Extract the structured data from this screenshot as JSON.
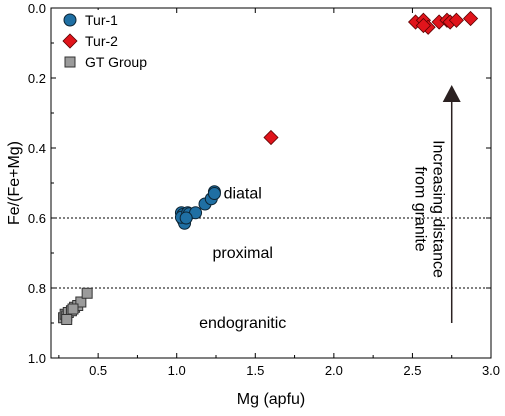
{
  "chart_data": {
    "type": "scatter",
    "title": "",
    "xlabel": "Mg (apfu)",
    "ylabel": "Fe/(Fe+Mg)",
    "xlim": [
      0.2,
      3.0
    ],
    "ylim": [
      0.0,
      1.0
    ],
    "y_inverted": true,
    "x_ticks": [
      "0.5",
      "1.0",
      "1.5",
      "2.0",
      "2.5",
      "3.0"
    ],
    "x_tick_values": [
      0.5,
      1.0,
      1.5,
      2.0,
      2.5,
      3.0
    ],
    "y_ticks": [
      "0.0",
      "0.2",
      "0.4",
      "0.6",
      "0.8",
      "1.0"
    ],
    "y_tick_values": [
      0.0,
      0.2,
      0.4,
      0.6,
      0.8,
      1.0
    ],
    "grid": false,
    "legend_position": "top-left",
    "series": [
      {
        "name": "Tur-1",
        "marker": "circle",
        "color": "#1f6fa3",
        "points": [
          [
            1.03,
            0.585
          ],
          [
            1.04,
            0.59
          ],
          [
            1.05,
            0.6
          ],
          [
            1.04,
            0.605
          ],
          [
            1.05,
            0.615
          ],
          [
            1.03,
            0.598
          ],
          [
            1.07,
            0.585
          ],
          [
            1.08,
            0.588
          ],
          [
            1.12,
            0.585
          ],
          [
            1.18,
            0.56
          ],
          [
            1.22,
            0.545
          ],
          [
            1.24,
            0.525
          ],
          [
            1.24,
            0.53
          ],
          [
            1.06,
            0.6
          ]
        ]
      },
      {
        "name": "Tur-2",
        "marker": "diamond",
        "color": "#e0141b",
        "points": [
          [
            1.6,
            0.37
          ],
          [
            2.52,
            0.04
          ],
          [
            2.57,
            0.035
          ],
          [
            2.6,
            0.055
          ],
          [
            2.67,
            0.04
          ],
          [
            2.72,
            0.035
          ],
          [
            2.74,
            0.04
          ],
          [
            2.78,
            0.035
          ],
          [
            2.87,
            0.03
          ],
          [
            2.57,
            0.05
          ]
        ]
      },
      {
        "name": "GT Group",
        "marker": "square",
        "color": "#9b9b9b",
        "points": [
          [
            0.28,
            0.885
          ],
          [
            0.29,
            0.875
          ],
          [
            0.3,
            0.88
          ],
          [
            0.31,
            0.87
          ],
          [
            0.33,
            0.865
          ],
          [
            0.35,
            0.855
          ],
          [
            0.37,
            0.85
          ],
          [
            0.39,
            0.84
          ],
          [
            0.43,
            0.815
          ],
          [
            0.3,
            0.89
          ],
          [
            0.34,
            0.86
          ]
        ]
      }
    ],
    "reference_lines": [
      {
        "axis": "y",
        "value": 0.6,
        "style": "dotted"
      },
      {
        "axis": "y",
        "value": 0.8,
        "style": "dotted"
      }
    ],
    "zone_labels": [
      {
        "text": "diatal",
        "x": 1.42,
        "y": 0.53
      },
      {
        "text": "proximal",
        "x": 1.42,
        "y": 0.7
      },
      {
        "text": "endogranitic",
        "x": 1.42,
        "y": 0.9
      }
    ],
    "arrow": {
      "x": 2.75,
      "y_from": 0.9,
      "y_to": 0.22,
      "color": "#2b2121"
    },
    "arrow_label_lines": [
      "Increasing distance",
      "from granite"
    ]
  }
}
